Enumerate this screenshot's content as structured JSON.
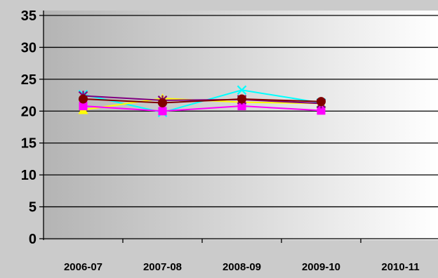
{
  "chart_data": {
    "type": "line",
    "title": "",
    "xlabel": "",
    "ylabel": "",
    "categories": [
      "2006-07",
      "2007-08",
      "2008-09",
      "2009-10",
      "2010-11"
    ],
    "ylim": [
      0,
      35
    ],
    "yticks": [
      0,
      5,
      10,
      15,
      20,
      25,
      30,
      35
    ],
    "grid": true,
    "legend": "none",
    "series": [
      {
        "color": "#00ffff",
        "marker": "x",
        "values": [
          22.6,
          19.8,
          23.3,
          21.3,
          null
        ]
      },
      {
        "color": "#ffff00",
        "marker": "triangle",
        "values": [
          20.2,
          22.0,
          21.4,
          21.2,
          null
        ]
      },
      {
        "color": "#ff00ff",
        "marker": "square",
        "values": [
          20.8,
          20.0,
          20.8,
          20.1,
          null
        ]
      },
      {
        "color": "#800080",
        "marker": "star",
        "values": [
          22.4,
          21.7,
          21.8,
          21.2,
          null
        ]
      },
      {
        "color": "#800000",
        "marker": "circle",
        "values": [
          21.9,
          21.3,
          21.9,
          21.5,
          null
        ]
      }
    ]
  }
}
